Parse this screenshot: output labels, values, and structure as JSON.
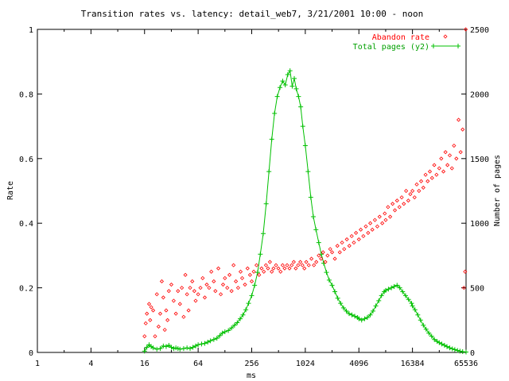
{
  "chart_data": {
    "type": "scatter",
    "title": "Transition rates vs. latency: detail_web7, 3/21/2001 10:00 - noon",
    "xlabel": "ms",
    "ylabel": "Rate",
    "y2label": "Number of pages",
    "x_scale": "log2",
    "xlim": [
      1,
      65536
    ],
    "ylim": [
      0,
      1
    ],
    "y2lim": [
      0,
      2500
    ],
    "x_ticks": [
      1,
      4,
      16,
      64,
      256,
      1024,
      4096,
      16384,
      65536
    ],
    "x_tick_labels": [
      "1",
      "4",
      "16",
      "64",
      "256",
      "1024",
      "4096",
      "16384",
      "65536"
    ],
    "y_ticks": [
      0,
      0.2,
      0.4,
      0.6,
      0.8,
      1
    ],
    "y_tick_labels": [
      "0",
      "0.2",
      "0.4",
      "0.6",
      "0.8",
      "1"
    ],
    "y2_ticks": [
      0,
      500,
      1000,
      1500,
      2000,
      2500
    ],
    "y2_tick_labels": [
      "0",
      "500",
      "1000",
      "1500",
      "2000",
      "2500"
    ],
    "grid": false,
    "legend_position": "top-right",
    "series": [
      {
        "name": "Abandon rate",
        "type": "scatter",
        "marker": "diamond",
        "axis": "y",
        "color": "#ff0000",
        "points": [
          [
            16,
            0.05
          ],
          [
            16.5,
            0.09
          ],
          [
            17,
            0.12
          ],
          [
            18,
            0.15
          ],
          [
            18.5,
            0.1
          ],
          [
            19,
            0.14
          ],
          [
            20,
            0.13
          ],
          [
            21,
            0.05
          ],
          [
            22,
            0.18
          ],
          [
            23,
            0.08
          ],
          [
            24,
            0.12
          ],
          [
            25,
            0.22
          ],
          [
            26,
            0.17
          ],
          [
            27,
            0.07
          ],
          [
            28,
            0.13
          ],
          [
            29,
            0.1
          ],
          [
            30,
            0.19
          ],
          [
            32,
            0.21
          ],
          [
            34,
            0.16
          ],
          [
            36,
            0.12
          ],
          [
            38,
            0.19
          ],
          [
            40,
            0.15
          ],
          [
            42,
            0.2
          ],
          [
            44,
            0.11
          ],
          [
            46,
            0.24
          ],
          [
            48,
            0.18
          ],
          [
            50,
            0.13
          ],
          [
            52,
            0.2
          ],
          [
            55,
            0.22
          ],
          [
            58,
            0.19
          ],
          [
            60,
            0.16
          ],
          [
            64,
            0.18
          ],
          [
            68,
            0.2
          ],
          [
            72,
            0.23
          ],
          [
            76,
            0.17
          ],
          [
            80,
            0.21
          ],
          [
            85,
            0.2
          ],
          [
            90,
            0.25
          ],
          [
            96,
            0.22
          ],
          [
            100,
            0.19
          ],
          [
            108,
            0.26
          ],
          [
            115,
            0.18
          ],
          [
            122,
            0.21
          ],
          [
            128,
            0.23
          ],
          [
            136,
            0.2
          ],
          [
            144,
            0.24
          ],
          [
            152,
            0.19
          ],
          [
            160,
            0.27
          ],
          [
            170,
            0.22
          ],
          [
            180,
            0.2
          ],
          [
            192,
            0.25
          ],
          [
            200,
            0.23
          ],
          [
            215,
            0.21
          ],
          [
            230,
            0.26
          ],
          [
            245,
            0.24
          ],
          [
            256,
            0.22
          ],
          [
            270,
            0.25
          ],
          [
            290,
            0.27
          ],
          [
            310,
            0.24
          ],
          [
            330,
            0.26
          ],
          [
            350,
            0.25
          ],
          [
            370,
            0.27
          ],
          [
            390,
            0.26
          ],
          [
            410,
            0.28
          ],
          [
            430,
            0.25
          ],
          [
            450,
            0.26
          ],
          [
            480,
            0.27
          ],
          [
            510,
            0.26
          ],
          [
            540,
            0.25
          ],
          [
            570,
            0.27
          ],
          [
            600,
            0.26
          ],
          [
            640,
            0.27
          ],
          [
            680,
            0.26
          ],
          [
            720,
            0.27
          ],
          [
            760,
            0.28
          ],
          [
            800,
            0.26
          ],
          [
            850,
            0.27
          ],
          [
            900,
            0.28
          ],
          [
            950,
            0.27
          ],
          [
            1000,
            0.26
          ],
          [
            1050,
            0.28
          ],
          [
            1120,
            0.27
          ],
          [
            1200,
            0.29
          ],
          [
            1280,
            0.27
          ],
          [
            1360,
            0.28
          ],
          [
            1450,
            0.3
          ],
          [
            1540,
            0.29
          ],
          [
            1620,
            0.31
          ],
          [
            1720,
            0.28
          ],
          [
            1820,
            0.3
          ],
          [
            1950,
            0.32
          ],
          [
            2048,
            0.31
          ],
          [
            2200,
            0.29
          ],
          [
            2350,
            0.33
          ],
          [
            2500,
            0.31
          ],
          [
            2650,
            0.34
          ],
          [
            2800,
            0.32
          ],
          [
            3000,
            0.35
          ],
          [
            3200,
            0.33
          ],
          [
            3400,
            0.36
          ],
          [
            3600,
            0.34
          ],
          [
            3800,
            0.37
          ],
          [
            4096,
            0.35
          ],
          [
            4300,
            0.38
          ],
          [
            4600,
            0.36
          ],
          [
            4900,
            0.39
          ],
          [
            5200,
            0.37
          ],
          [
            5500,
            0.4
          ],
          [
            5800,
            0.38
          ],
          [
            6200,
            0.41
          ],
          [
            6600,
            0.39
          ],
          [
            7000,
            0.42
          ],
          [
            7500,
            0.4
          ],
          [
            8000,
            0.43
          ],
          [
            8192,
            0.41
          ],
          [
            8700,
            0.45
          ],
          [
            9200,
            0.42
          ],
          [
            9800,
            0.46
          ],
          [
            10400,
            0.44
          ],
          [
            11000,
            0.47
          ],
          [
            11700,
            0.45
          ],
          [
            12400,
            0.48
          ],
          [
            13100,
            0.46
          ],
          [
            13900,
            0.5
          ],
          [
            14700,
            0.47
          ],
          [
            15500,
            0.49
          ],
          [
            16384,
            0.5
          ],
          [
            17300,
            0.48
          ],
          [
            18300,
            0.52
          ],
          [
            19400,
            0.5
          ],
          [
            20500,
            0.53
          ],
          [
            21700,
            0.51
          ],
          [
            23000,
            0.55
          ],
          [
            24300,
            0.53
          ],
          [
            25700,
            0.56
          ],
          [
            27200,
            0.54
          ],
          [
            28800,
            0.58
          ],
          [
            30500,
            0.55
          ],
          [
            32768,
            0.57
          ],
          [
            34500,
            0.6
          ],
          [
            36500,
            0.56
          ],
          [
            38500,
            0.62
          ],
          [
            40500,
            0.58
          ],
          [
            43000,
            0.61
          ],
          [
            45500,
            0.57
          ],
          [
            48000,
            0.64
          ],
          [
            51000,
            0.6
          ],
          [
            54000,
            0.72
          ],
          [
            57000,
            0.62
          ],
          [
            60000,
            0.69
          ],
          [
            62000,
            0.2
          ],
          [
            64000,
            0.25
          ],
          [
            65000,
            1.0
          ]
        ]
      },
      {
        "name": "Total pages (y2)",
        "type": "line",
        "marker": "plus",
        "axis": "y2",
        "color": "#00c000",
        "points": [
          [
            16,
            10
          ],
          [
            17,
            40
          ],
          [
            18,
            60
          ],
          [
            19,
            45
          ],
          [
            20,
            35
          ],
          [
            22,
            25
          ],
          [
            24,
            30
          ],
          [
            26,
            50
          ],
          [
            28,
            45
          ],
          [
            30,
            55
          ],
          [
            32,
            40
          ],
          [
            34,
            30
          ],
          [
            36,
            35
          ],
          [
            38,
            30
          ],
          [
            40,
            25
          ],
          [
            44,
            30
          ],
          [
            48,
            35
          ],
          [
            52,
            30
          ],
          [
            56,
            40
          ],
          [
            60,
            50
          ],
          [
            64,
            60
          ],
          [
            70,
            65
          ],
          [
            76,
            70
          ],
          [
            82,
            80
          ],
          [
            88,
            90
          ],
          [
            96,
            100
          ],
          [
            104,
            110
          ],
          [
            112,
            130
          ],
          [
            120,
            150
          ],
          [
            128,
            160
          ],
          [
            140,
            170
          ],
          [
            152,
            190
          ],
          [
            164,
            210
          ],
          [
            176,
            230
          ],
          [
            190,
            260
          ],
          [
            204,
            290
          ],
          [
            220,
            330
          ],
          [
            236,
            380
          ],
          [
            256,
            440
          ],
          [
            276,
            520
          ],
          [
            298,
            620
          ],
          [
            320,
            760
          ],
          [
            345,
            920
          ],
          [
            372,
            1150
          ],
          [
            400,
            1400
          ],
          [
            430,
            1650
          ],
          [
            462,
            1850
          ],
          [
            496,
            1980
          ],
          [
            532,
            2050
          ],
          [
            570,
            2100
          ],
          [
            610,
            2070
          ],
          [
            650,
            2150
          ],
          [
            690,
            2180
          ],
          [
            730,
            2060
          ],
          [
            770,
            2120
          ],
          [
            810,
            2040
          ],
          [
            860,
            1980
          ],
          [
            910,
            1900
          ],
          [
            960,
            1750
          ],
          [
            1024,
            1600
          ],
          [
            1100,
            1400
          ],
          [
            1180,
            1200
          ],
          [
            1260,
            1050
          ],
          [
            1350,
            950
          ],
          [
            1450,
            850
          ],
          [
            1550,
            760
          ],
          [
            1650,
            690
          ],
          [
            1770,
            620
          ],
          [
            1900,
            560
          ],
          [
            2048,
            520
          ],
          [
            2200,
            470
          ],
          [
            2370,
            420
          ],
          [
            2550,
            380
          ],
          [
            2750,
            345
          ],
          [
            2960,
            320
          ],
          [
            3180,
            300
          ],
          [
            3420,
            290
          ],
          [
            3680,
            280
          ],
          [
            3960,
            270
          ],
          [
            4096,
            260
          ],
          [
            4400,
            250
          ],
          [
            4750,
            260
          ],
          [
            5100,
            270
          ],
          [
            5500,
            290
          ],
          [
            5900,
            320
          ],
          [
            6350,
            360
          ],
          [
            6850,
            400
          ],
          [
            7350,
            440
          ],
          [
            7900,
            470
          ],
          [
            8192,
            480
          ],
          [
            8800,
            490
          ],
          [
            9500,
            500
          ],
          [
            10200,
            510
          ],
          [
            11000,
            520
          ],
          [
            11800,
            500
          ],
          [
            12700,
            470
          ],
          [
            13700,
            440
          ],
          [
            14800,
            410
          ],
          [
            16000,
            380
          ],
          [
            16384,
            360
          ],
          [
            17500,
            330
          ],
          [
            18800,
            290
          ],
          [
            20200,
            250
          ],
          [
            21700,
            210
          ],
          [
            23300,
            180
          ],
          [
            25000,
            150
          ],
          [
            26900,
            125
          ],
          [
            28900,
            100
          ],
          [
            31000,
            85
          ],
          [
            32768,
            75
          ],
          [
            35000,
            65
          ],
          [
            37500,
            55
          ],
          [
            40000,
            45
          ],
          [
            43000,
            35
          ],
          [
            46000,
            28
          ],
          [
            49000,
            22
          ],
          [
            52500,
            15
          ],
          [
            56000,
            10
          ],
          [
            60000,
            6
          ],
          [
            65536,
            3
          ]
        ]
      }
    ]
  }
}
